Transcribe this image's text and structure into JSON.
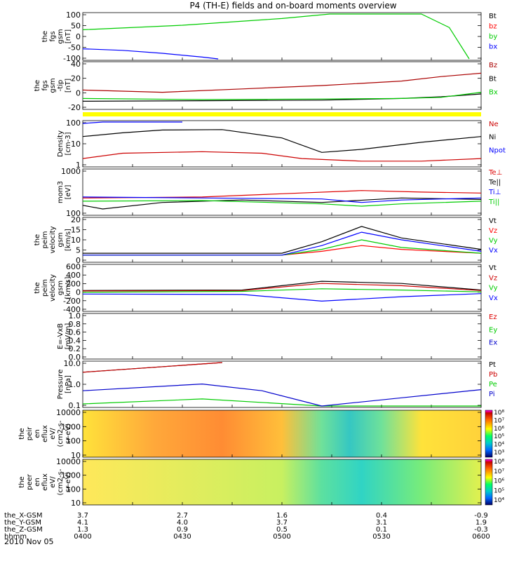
{
  "title": "P4 (TH-E) fields and on-board moments overview",
  "date": "2010 Nov 05",
  "time_axis": {
    "ticks": [
      "0400",
      "0430",
      "0500",
      "0530",
      "0600"
    ],
    "row_labels": [
      "the_X-GSM",
      "the_Y-GSM",
      "the_Z-GSM",
      "hhmm"
    ],
    "rows": [
      [
        "3.7",
        "2.7",
        "1.6",
        "0.4",
        "-0.9"
      ],
      [
        "4.1",
        "4.0",
        "3.7",
        "3.1",
        "1.9"
      ],
      [
        "1.3",
        "0.9",
        "0.5",
        "0.1",
        "-0.3"
      ]
    ]
  },
  "chart_data": [
    {
      "type": "line",
      "ylabel": [
        "the",
        "fgs",
        "gsm",
        "[nT]"
      ],
      "ylim": [
        -100,
        100
      ],
      "yticks": [
        "100",
        "50",
        "0",
        "-50",
        "-100"
      ],
      "series": [
        {
          "name": "Bt",
          "color": "#000000",
          "x": [
            0,
            0.5,
            1
          ],
          "values": [
            null,
            null,
            null
          ]
        },
        {
          "name": "bz",
          "color": "#ff0000",
          "x": [
            0,
            0.5,
            1
          ],
          "values": [
            null,
            null,
            null
          ]
        },
        {
          "name": "by",
          "color": "#00cc00",
          "x": [
            0,
            0.25,
            0.5,
            0.62,
            0.85,
            0.92,
            0.97
          ],
          "values": [
            30,
            50,
            80,
            100,
            100,
            40,
            -100
          ]
        },
        {
          "name": "bx",
          "color": "#0000ff",
          "x": [
            0,
            0.1,
            0.2,
            0.3,
            0.34
          ],
          "values": [
            -55,
            -62,
            -75,
            -92,
            -100
          ]
        }
      ]
    },
    {
      "type": "line",
      "ylabel": [
        "the",
        "fgs",
        "gsm",
        "-tip",
        "[nT]"
      ],
      "ylim": [
        -20,
        60
      ],
      "yticks": [
        "40",
        "20",
        "0",
        "-20"
      ],
      "series": [
        {
          "name": "Bz",
          "color": "#aa0000",
          "x": [
            0,
            0.2,
            0.4,
            0.6,
            0.8,
            0.9,
            1
          ],
          "values": [
            12,
            8,
            14,
            20,
            28,
            36,
            42
          ]
        },
        {
          "name": "Bt",
          "color": "#000000",
          "x": [
            0,
            0.3,
            0.6,
            0.8,
            0.9,
            1
          ],
          "values": [
            -8,
            -7,
            -6,
            -3,
            0,
            5
          ]
        },
        {
          "name": "Bx",
          "color": "#00cc00",
          "x": [
            0,
            0.3,
            0.6,
            0.8,
            0.9,
            1
          ],
          "values": [
            -3,
            -5,
            -4,
            -3,
            -1,
            8
          ]
        }
      ]
    },
    {
      "type": "line",
      "ylabel": [
        "Density",
        "[cm-3]"
      ],
      "log": true,
      "ylim": [
        0.1,
        100
      ],
      "yticks": [
        "100",
        "10",
        "1"
      ],
      "series": [
        {
          "name": "Ne",
          "color": "#cc0000",
          "x": [
            0,
            0.1,
            0.3,
            0.45,
            0.55,
            0.7,
            0.85,
            1
          ],
          "values": [
            0.3,
            0.7,
            0.9,
            0.7,
            0.3,
            0.2,
            0.2,
            0.3
          ]
        },
        {
          "name": "Ni",
          "color": "#000000",
          "x": [
            0,
            0.1,
            0.2,
            0.35,
            0.5,
            0.6,
            0.7,
            0.85,
            1
          ],
          "values": [
            10,
            18,
            28,
            30,
            8,
            0.8,
            1.3,
            4,
            10
          ]
        },
        {
          "name": "Npot",
          "color": "#0000ff",
          "x": [
            0,
            0.05,
            0.2,
            0.25
          ],
          "values": [
            80,
            120,
            100,
            100
          ]
        }
      ]
    },
    {
      "type": "line",
      "ylabel": [
        "mom3",
        "[eV]"
      ],
      "log": true,
      "ylim": [
        100,
        2000
      ],
      "yticks": [
        "1000",
        "100"
      ],
      "series": [
        {
          "name": "Te⊥",
          "color": "#dd0000",
          "x": [
            0,
            0.3,
            0.5,
            0.7,
            0.85,
            1
          ],
          "values": [
            300,
            320,
            400,
            500,
            450,
            420
          ]
        },
        {
          "name": "Te||",
          "color": "#000000",
          "x": [
            0,
            0.05,
            0.2,
            0.4,
            0.6,
            0.8,
            1
          ],
          "values": [
            180,
            140,
            220,
            260,
            220,
            300,
            270
          ]
        },
        {
          "name": "Ti⊥",
          "color": "#0000ff",
          "x": [
            0,
            0.3,
            0.6,
            0.7,
            0.8,
            1
          ],
          "values": [
            320,
            300,
            280,
            220,
            260,
            300
          ]
        },
        {
          "name": "Ti||",
          "color": "#00cc00",
          "x": [
            0,
            0.3,
            0.6,
            0.7,
            0.8,
            1
          ],
          "values": [
            240,
            250,
            200,
            170,
            200,
            240
          ]
        }
      ]
    },
    {
      "type": "line",
      "ylabel": [
        "the",
        "peim",
        "velocity",
        "gsm",
        "[km/s]"
      ],
      "ylim": [
        -2,
        20
      ],
      "yticks": [
        "20",
        "15",
        "10",
        "5",
        "0"
      ],
      "series": [
        {
          "name": "Vt",
          "color": "#000000",
          "x": [
            0,
            0.5,
            0.6,
            0.7,
            0.8,
            1
          ],
          "values": [
            2,
            2,
            8,
            16,
            10,
            4
          ]
        },
        {
          "name": "Vz",
          "color": "#ff0000",
          "x": [
            0,
            0.5,
            0.6,
            0.7,
            0.8,
            1
          ],
          "values": [
            1,
            1,
            3,
            6,
            4,
            2
          ]
        },
        {
          "name": "Vy",
          "color": "#00cc00",
          "x": [
            0,
            0.5,
            0.6,
            0.7,
            0.8,
            1
          ],
          "values": [
            1,
            1,
            4,
            9,
            5,
            2
          ]
        },
        {
          "name": "Vx",
          "color": "#0000ff",
          "x": [
            0,
            0.5,
            0.6,
            0.7,
            0.8,
            1
          ],
          "values": [
            1,
            1,
            6,
            13,
            9,
            3
          ]
        }
      ]
    },
    {
      "type": "line",
      "ylabel": [
        "the",
        "peim",
        "velocity",
        "gsm",
        "[km/s]"
      ],
      "ylim": [
        -400,
        600
      ],
      "yticks": [
        "600",
        "400",
        "200",
        "0",
        "-200",
        "-400"
      ],
      "series": [
        {
          "name": "Vt",
          "color": "#000000",
          "x": [
            0,
            0.4,
            0.6,
            0.8,
            1
          ],
          "values": [
            40,
            50,
            250,
            200,
            50
          ]
        },
        {
          "name": "Vz",
          "color": "#cc0000",
          "x": [
            0,
            0.4,
            0.6,
            0.8,
            1
          ],
          "values": [
            30,
            40,
            200,
            150,
            40
          ]
        },
        {
          "name": "Vy",
          "color": "#00cc00",
          "x": [
            0,
            0.4,
            0.6,
            0.8,
            1
          ],
          "values": [
            0,
            20,
            80,
            50,
            10
          ]
        },
        {
          "name": "Vx",
          "color": "#0000ff",
          "x": [
            0,
            0.4,
            0.6,
            0.8,
            1
          ],
          "values": [
            -40,
            -50,
            -200,
            -100,
            -30
          ]
        }
      ]
    },
    {
      "type": "line",
      "ylabel": [
        "E=-VxB",
        "[mV/m]"
      ],
      "ylim": [
        0,
        1
      ],
      "yticks": [
        "1.0",
        "0.8",
        "0.6",
        "0.4",
        "0.2",
        "0.0"
      ],
      "series": [
        {
          "name": "Ez",
          "color": "#dd0000",
          "x": [],
          "values": []
        },
        {
          "name": "Ey",
          "color": "#00cc00",
          "x": [],
          "values": []
        },
        {
          "name": "Ex",
          "color": "#0000cc",
          "x": [],
          "values": []
        }
      ]
    },
    {
      "type": "line",
      "ylabel": [
        "Pressure",
        "[nPa]"
      ],
      "log": true,
      "ylim": [
        0.02,
        100
      ],
      "yticks": [
        "10.0",
        "1.0",
        "0.1"
      ],
      "series": [
        {
          "name": "Pt",
          "color": "#000000",
          "x": [
            0,
            0.35
          ],
          "values": [
            15,
            100
          ]
        },
        {
          "name": "Pb",
          "color": "#cc0000",
          "x": [
            0,
            0.35
          ],
          "values": [
            15,
            100
          ]
        },
        {
          "name": "Pe",
          "color": "#00cc00",
          "x": [
            0,
            0.3,
            0.6,
            1
          ],
          "values": [
            0.03,
            0.08,
            0.02,
            0.02
          ]
        },
        {
          "name": "Pi",
          "color": "#0000cc",
          "x": [
            0,
            0.3,
            0.45,
            0.6,
            0.8,
            1
          ],
          "values": [
            0.4,
            1.5,
            0.4,
            0.02,
            0.1,
            0.5
          ]
        }
      ]
    },
    {
      "type": "heatmap",
      "ylabel": [
        "the",
        "peir",
        "en",
        "eflux",
        "eV/",
        "(cm2-s-",
        "sr-eV)"
      ],
      "log": true,
      "yticks": [
        "10000",
        "1000",
        "100",
        "10"
      ],
      "colorbar": {
        "ticks": [
          "10⁸",
          "10⁷",
          "10⁶",
          "10⁵",
          "10⁴",
          "10³"
        ]
      }
    },
    {
      "type": "heatmap",
      "ylabel": [
        "the",
        "peer",
        "en",
        "eflux",
        "eV/",
        "(cm2-s-",
        "sr-eV)"
      ],
      "log": true,
      "yticks": [
        "10000",
        "1000",
        "100",
        "10"
      ],
      "colorbar": {
        "ticks": [
          "10⁸",
          "10⁷",
          "10⁶",
          "10⁵",
          "10⁴"
        ]
      }
    }
  ]
}
